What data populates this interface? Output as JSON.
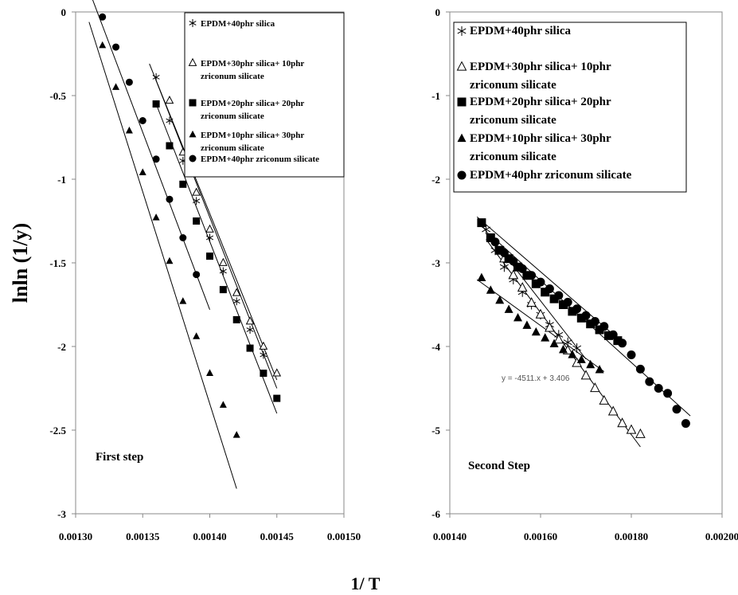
{
  "figure": {
    "ylabel": "lnln (1/y)",
    "xlabel": "1/ T"
  },
  "chart_data": [
    {
      "type": "scatter",
      "annotation": "First step",
      "xlim": [
        0.0013,
        0.0015
      ],
      "ylim": [
        -3,
        0
      ],
      "xticks": [
        "0.00130",
        "0.00135",
        "0.00140",
        "0.00145",
        "0.00150"
      ],
      "yticks": [
        "0",
        "-0.5",
        "-1",
        "-1.5",
        "-2",
        "-2.5",
        "-3"
      ],
      "grid": false,
      "legend_position": "top-right",
      "series": [
        {
          "name": "EPDM+40phr silica",
          "marker": "asterisk",
          "x": [
            0.00136,
            0.00137,
            0.00138,
            0.00139,
            0.0014,
            0.00141,
            0.00142,
            0.00143,
            0.00144
          ],
          "y": [
            -0.39,
            -0.65,
            -0.89,
            -1.13,
            -1.35,
            -1.55,
            -1.73,
            -1.9,
            -2.05
          ],
          "fit": {
            "x": [
              0.001355,
              0.00145
            ],
            "y": [
              -0.31,
              -2.2
            ]
          }
        },
        {
          "name": "EPDM+30phr silica+ 10phr zriconum silicate",
          "marker": "triangle-open",
          "x": [
            0.00137,
            0.00138,
            0.00139,
            0.0014,
            0.00141,
            0.00142,
            0.00143,
            0.00144,
            0.00145
          ],
          "y": [
            -0.53,
            -0.84,
            -1.08,
            -1.3,
            -1.5,
            -1.68,
            -1.85,
            -2.0,
            -2.16
          ],
          "fit": {
            "x": [
              0.00136,
              0.00145
            ],
            "y": [
              -0.41,
              -2.25
            ]
          }
        },
        {
          "name": "EPDM+20phr silica+ 20phr zriconum silicate",
          "marker": "square",
          "x": [
            0.00136,
            0.00137,
            0.00138,
            0.00139,
            0.0014,
            0.00141,
            0.00142,
            0.00143,
            0.00144,
            0.00145
          ],
          "y": [
            -0.55,
            -0.8,
            -1.03,
            -1.25,
            -1.46,
            -1.66,
            -1.84,
            -2.01,
            -2.16,
            -2.31
          ],
          "fit": {
            "x": [
              0.00136,
              0.00145
            ],
            "y": [
              -0.55,
              -2.4
            ]
          }
        },
        {
          "name": "EPDM+10phr silica+ 30phr zriconum silicate",
          "marker": "triangle",
          "x": [
            0.00132,
            0.00133,
            0.00134,
            0.00135,
            0.00136,
            0.00137,
            0.00138,
            0.00139,
            0.0014,
            0.00141,
            0.00142
          ],
          "y": [
            -0.2,
            -0.45,
            -0.71,
            -0.96,
            -1.23,
            -1.49,
            -1.73,
            -1.94,
            -2.16,
            -2.35,
            -2.53
          ],
          "fit": {
            "x": [
              0.00131,
              0.00142
            ],
            "y": [
              -0.06,
              -2.85
            ]
          }
        },
        {
          "name": "EPDM+40phr zriconum silicate",
          "marker": "circle",
          "x": [
            0.00132,
            0.00133,
            0.00134,
            0.00135,
            0.00136,
            0.00137,
            0.00138,
            0.00139
          ],
          "y": [
            -0.03,
            -0.21,
            -0.42,
            -0.65,
            -0.88,
            -1.12,
            -1.35,
            -1.57
          ],
          "fit": {
            "x": [
              0.00131,
              0.0014
            ],
            "y": [
              0.13,
              -1.78
            ]
          }
        }
      ]
    },
    {
      "type": "scatter",
      "annotation": "Second Step",
      "fit_equation": "y = -4511.x + 3.406",
      "xlim": [
        0.0014,
        0.002
      ],
      "ylim": [
        -6,
        0
      ],
      "xticks": [
        "0.00140",
        "0.00160",
        "0.00180",
        "0.00200"
      ],
      "yticks": [
        "0",
        "-1",
        "-2",
        "-3",
        "-4",
        "-5",
        "-6"
      ],
      "grid": false,
      "legend_position": "top",
      "series": [
        {
          "name": "EPDM+40phr silica",
          "marker": "asterisk",
          "x": [
            0.00148,
            0.0015,
            0.00152,
            0.00154,
            0.00156,
            0.00158,
            0.0016,
            0.00162,
            0.00164,
            0.00166,
            0.00168
          ],
          "y": [
            -2.6,
            -2.85,
            -3.05,
            -3.2,
            -3.35,
            -3.5,
            -3.62,
            -3.74,
            -3.86,
            -3.95,
            -4.02
          ],
          "fit": {
            "x": [
              0.00147,
              0.0017
            ],
            "y": [
              -2.55,
              -4.15
            ]
          }
        },
        {
          "name": "EPDM+30phr silica+ 10phr zriconum silicate",
          "marker": "triangle-open",
          "x": [
            0.00152,
            0.00154,
            0.00156,
            0.00158,
            0.0016,
            0.00162,
            0.00164,
            0.00166,
            0.00168,
            0.0017,
            0.00172,
            0.00174,
            0.00176,
            0.00178,
            0.0018,
            0.00182
          ],
          "y": [
            -2.95,
            -3.15,
            -3.3,
            -3.48,
            -3.62,
            -3.78,
            -3.92,
            -4.05,
            -4.2,
            -4.35,
            -4.5,
            -4.65,
            -4.78,
            -4.92,
            -5.0,
            -5.05
          ],
          "fit": {
            "x": [
              0.00148,
              0.00182
            ],
            "y": [
              -2.72,
              -5.2
            ]
          }
        },
        {
          "name": "EPDM+20phr silica+ 20phr zriconum silicate",
          "marker": "square",
          "x": [
            0.00147,
            0.00149,
            0.00151,
            0.00153,
            0.00155,
            0.00157,
            0.00159,
            0.00161,
            0.00163,
            0.00165,
            0.00167,
            0.00169,
            0.00171,
            0.00173,
            0.00175,
            0.00177
          ],
          "y": [
            -2.52,
            -2.7,
            -2.85,
            -2.95,
            -3.05,
            -3.15,
            -3.25,
            -3.35,
            -3.43,
            -3.5,
            -3.58,
            -3.66,
            -3.73,
            -3.8,
            -3.87,
            -3.93
          ],
          "fit": {
            "x": [
              0.00146,
              0.00178
            ],
            "y": [
              -2.45,
              -3.95
            ]
          }
        },
        {
          "name": "EPDM+10phr silica+ 30phr zriconum silicate",
          "marker": "triangle",
          "x": [
            0.00147,
            0.00149,
            0.00151,
            0.00153,
            0.00155,
            0.00157,
            0.00159,
            0.00161,
            0.00163,
            0.00165,
            0.00167,
            0.00169,
            0.00171,
            0.00173
          ],
          "y": [
            -3.18,
            -3.33,
            -3.45,
            -3.56,
            -3.66,
            -3.75,
            -3.83,
            -3.9,
            -3.97,
            -4.04,
            -4.1,
            -4.16,
            -4.22,
            -4.28
          ],
          "fit": {
            "x": [
              0.00146,
              0.00174
            ],
            "y": [
              -3.2,
              -4.3
            ]
          }
        },
        {
          "name": "EPDM+40phr zriconum silicate",
          "marker": "circle",
          "x": [
            0.0015,
            0.00152,
            0.00154,
            0.00156,
            0.00158,
            0.0016,
            0.00162,
            0.00164,
            0.00166,
            0.00168,
            0.0017,
            0.00172,
            0.00174,
            0.00176,
            0.00178,
            0.0018,
            0.00182,
            0.00184,
            0.00186,
            0.00188,
            0.0019,
            0.00192
          ],
          "y": [
            -2.75,
            -2.88,
            -2.98,
            -3.07,
            -3.15,
            -3.23,
            -3.31,
            -3.39,
            -3.47,
            -3.55,
            -3.63,
            -3.7,
            -3.76,
            -3.86,
            -3.96,
            -4.1,
            -4.27,
            -4.42,
            -4.5,
            -4.56,
            -4.75,
            -4.92
          ],
          "fit": {
            "x": [
              0.00149,
              0.00193
            ],
            "y": [
              -2.67,
              -4.83
            ]
          }
        }
      ]
    }
  ]
}
